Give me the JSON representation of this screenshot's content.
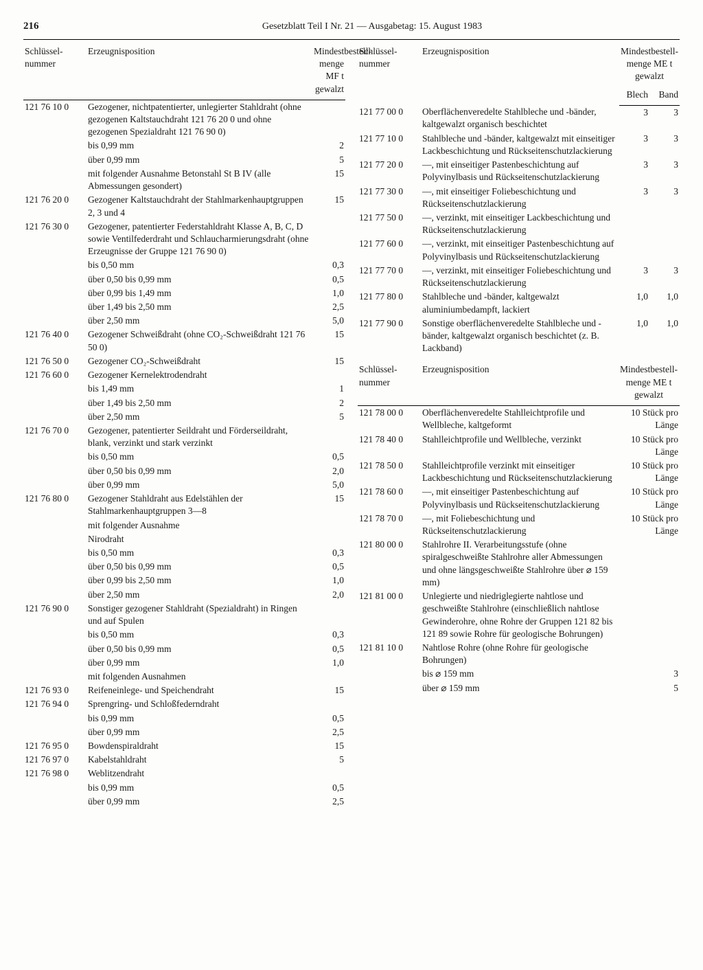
{
  "page_number": "216",
  "page_title": "Gesetzblatt Teil I Nr. 21 — Ausgabetag: 15. August 1983",
  "headers": {
    "schluessel": "Schlüssel-\nnummer",
    "erzeugnis": "Erzeugnisposition",
    "mindest_mf": "Mindestbestell-\nmenge MF t\ngewalzt",
    "mindest_me": "Mindestbestell-\nmenge ME t\ngewalzt",
    "blech": "Blech",
    "band": "Band"
  },
  "left": [
    {
      "num": "121 76 10 0",
      "desc": "Gezogener, nichtpatentierter, unlegierter Stahldraht (ohne gezogenen Kaltstauchdraht 121 76 20 0 und ohne gezogenen Spezialdraht 121 76 90 0)",
      "val": ""
    },
    {
      "num": "",
      "desc": "bis   0,99 mm",
      "val": "2"
    },
    {
      "num": "",
      "desc": "über 0,99 mm",
      "val": "5"
    },
    {
      "num": "",
      "desc": "mit folgender Ausnahme Betonstahl St B IV (alle Abmessungen gesondert)",
      "val": "15"
    },
    {
      "num": "121 76 20 0",
      "desc": "Gezogener Kaltstauchdraht der Stahlmarkenhauptgruppen 2, 3 und 4",
      "val": "15"
    },
    {
      "num": "121 76 30 0",
      "desc": "Gezogener, patentierter Federstahldraht Klasse A, B, C, D sowie Ventilfederdraht und Schlaucharmierungsdraht (ohne Erzeugnisse der Gruppe 121 76 90 0)",
      "val": ""
    },
    {
      "num": "",
      "desc": "bis   0,50 mm",
      "val": "0,3"
    },
    {
      "num": "",
      "desc": "über 0,50 bis 0,99 mm",
      "val": "0,5"
    },
    {
      "num": "",
      "desc": "über 0,99 bis 1,49 mm",
      "val": "1,0"
    },
    {
      "num": "",
      "desc": "über 1,49 bis 2,50 mm",
      "val": "2,5"
    },
    {
      "num": "",
      "desc": "über 2,50 mm",
      "val": "5,0"
    },
    {
      "num": "121 76 40 0",
      "desc": "Gezogener Schweißdraht (ohne CO₂-Schweißdraht 121 76 50 0)",
      "val": "15"
    },
    {
      "num": "121 76 50 0",
      "desc": "Gezogener CO₂-Schweißdraht",
      "val": "15"
    },
    {
      "num": "121 76 60 0",
      "desc": "Gezogener Kernelektrodendraht",
      "val": ""
    },
    {
      "num": "",
      "desc": "bis   1,49 mm",
      "val": "1"
    },
    {
      "num": "",
      "desc": "über 1,49 bis 2,50 mm",
      "val": "2"
    },
    {
      "num": "",
      "desc": "über 2,50 mm",
      "val": "5"
    },
    {
      "num": "121 76 70 0",
      "desc": "Gezogener, patentierter Seildraht und Förderseildraht, blank, verzinkt und stark verzinkt",
      "val": ""
    },
    {
      "num": "",
      "desc": "bis   0,50 mm",
      "val": "0,5"
    },
    {
      "num": "",
      "desc": "über 0,50 bis 0,99 mm",
      "val": "2,0"
    },
    {
      "num": "",
      "desc": "über 0,99 mm",
      "val": "5,0"
    },
    {
      "num": "121 76 80 0",
      "desc": "Gezogener Stahldraht aus Edelstählen der Stahlmarkenhauptgruppen 3—8",
      "val": "15"
    },
    {
      "num": "",
      "desc": "mit folgender Ausnahme",
      "val": ""
    },
    {
      "num": "",
      "desc": "Nirodraht",
      "val": ""
    },
    {
      "num": "",
      "desc": "bis   0,50 mm",
      "val": "0,3"
    },
    {
      "num": "",
      "desc": "über 0,50 bis 0,99 mm",
      "val": "0,5"
    },
    {
      "num": "",
      "desc": "über 0,99 bis 2,50 mm",
      "val": "1,0"
    },
    {
      "num": "",
      "desc": "über 2,50 mm",
      "val": "2,0"
    },
    {
      "num": "121 76 90 0",
      "desc": "Sonstiger gezogener Stahldraht (Spezialdraht) in Ringen und auf Spulen",
      "val": ""
    },
    {
      "num": "",
      "desc": "bis   0,50 mm",
      "val": "0,3"
    },
    {
      "num": "",
      "desc": "über 0,50 bis 0,99 mm",
      "val": "0,5"
    },
    {
      "num": "",
      "desc": "über 0,99 mm",
      "val": "1,0"
    },
    {
      "num": "",
      "desc": "mit folgenden Ausnahmen",
      "val": ""
    },
    {
      "num": "121 76 93 0",
      "desc": "Reifeneinlege- und Speichendraht",
      "val": "15"
    },
    {
      "num": "121 76 94 0",
      "desc": "Sprengring- und Schloßfederndraht",
      "val": ""
    },
    {
      "num": "",
      "desc": "bis   0,99 mm",
      "val": "0,5"
    },
    {
      "num": "",
      "desc": "über 0,99 mm",
      "val": "2,5"
    },
    {
      "num": "121 76 95 0",
      "desc": "Bowdenspiraldraht",
      "val": "15"
    },
    {
      "num": "121 76 97 0",
      "desc": "Kabelstahldraht",
      "val": "5"
    },
    {
      "num": "121 76 98 0",
      "desc": "Weblitzendraht",
      "val": ""
    },
    {
      "num": "",
      "desc": "bis   0,99 mm",
      "val": "0,5"
    },
    {
      "num": "",
      "desc": "über 0,99 mm",
      "val": "2,5"
    }
  ],
  "right_a": [
    {
      "num": "121 77 00 0",
      "desc": "Oberflächenveredelte Stahlbleche und -bänder, kaltgewalzt organisch beschichtet",
      "v1": "3",
      "v2": "3"
    },
    {
      "num": "121 77 10 0",
      "desc": "Stahlbleche und -bänder, kaltgewalzt mit einseitiger Lackbeschichtung und Rückseitenschutzlackierung",
      "v1": "3",
      "v2": "3"
    },
    {
      "num": "121 77 20 0",
      "desc": "—, mit einseitiger Pastenbeschichtung auf Polyvinylbasis und Rückseitenschutzlackierung",
      "v1": "3",
      "v2": "3"
    },
    {
      "num": "121 77 30 0",
      "desc": "—, mit einseitiger Foliebeschichtung und Rückseitenschutzlackierung",
      "v1": "3",
      "v2": "3"
    },
    {
      "num": "121 77 50 0",
      "desc": "—, verzinkt, mit einseitiger Lackbeschichtung und Rückseitenschutzlackierung",
      "v1": "",
      "v2": ""
    },
    {
      "num": "121 77 60 0",
      "desc": "—, verzinkt, mit einseitiger Pastenbeschichtung auf Polyvinylbasis und Rückseitenschutzlackierung",
      "v1": "",
      "v2": ""
    },
    {
      "num": "121 77 70 0",
      "desc": "—, verzinkt, mit einseitiger Foliebeschichtung und Rückseitenschutzlackierung",
      "v1": "3",
      "v2": "3"
    },
    {
      "num": "121 77 80 0",
      "desc": "Stahlbleche und -bänder, kaltgewalzt aluminiumbedampft, lackiert",
      "v1": "1,0",
      "v2": "1,0"
    },
    {
      "num": "121 77 90 0",
      "desc": "Sonstige oberflächenveredelte Stahlbleche und -bänder, kaltgewalzt organisch beschichtet (z. B. Lackband)",
      "v1": "1,0",
      "v2": "1,0"
    }
  ],
  "right_b": [
    {
      "num": "121 78 00 0",
      "desc": "Oberflächenveredelte Stahlleichtprofile und Wellbleche, kaltgeformt",
      "val": "10 Stück pro Länge"
    },
    {
      "num": "121 78 40 0",
      "desc": "Stahlleichtprofile und Wellbleche, verzinkt",
      "val": "10 Stück pro Länge"
    },
    {
      "num": "121 78 50 0",
      "desc": "Stahlleichtprofile verzinkt mit einseitiger Lackbeschichtung und Rückseitenschutzlackierung",
      "val": "10 Stück pro Länge"
    },
    {
      "num": "121 78 60 0",
      "desc": "—, mit einseitiger Pastenbeschichtung auf Polyvinylbasis und Rückseitenschutzlackierung",
      "val": "10 Stück pro Länge"
    },
    {
      "num": "121 78 70 0",
      "desc": "—, mit Foliebeschichtung und Rückseitenschutzlackierung",
      "val": "10 Stück pro Länge"
    },
    {
      "num": "121 80 00 0",
      "desc": "Stahlrohre II. Verarbeitungsstufe (ohne spiralgeschweißte Stahlrohre aller Abmessungen und ohne längsgeschweißte Stahlrohre über ⌀ 159 mm)",
      "val": ""
    },
    {
      "num": "121 81 00 0",
      "desc": "Unlegierte und niedriglegierte nahtlose und geschweißte Stahlrohre (einschließlich nahtlose Gewinderohre, ohne Rohre der Gruppen 121 82 bis 121 89 sowie Rohre für geologische Bohrungen)",
      "val": ""
    },
    {
      "num": "121 81 10 0",
      "desc": "Nahtlose Rohre (ohne Rohre für geologische Bohrungen)",
      "val": ""
    },
    {
      "num": "",
      "desc": "bis   ⌀ 159 mm",
      "val": "3"
    },
    {
      "num": "",
      "desc": "über ⌀ 159 mm",
      "val": "5"
    }
  ]
}
